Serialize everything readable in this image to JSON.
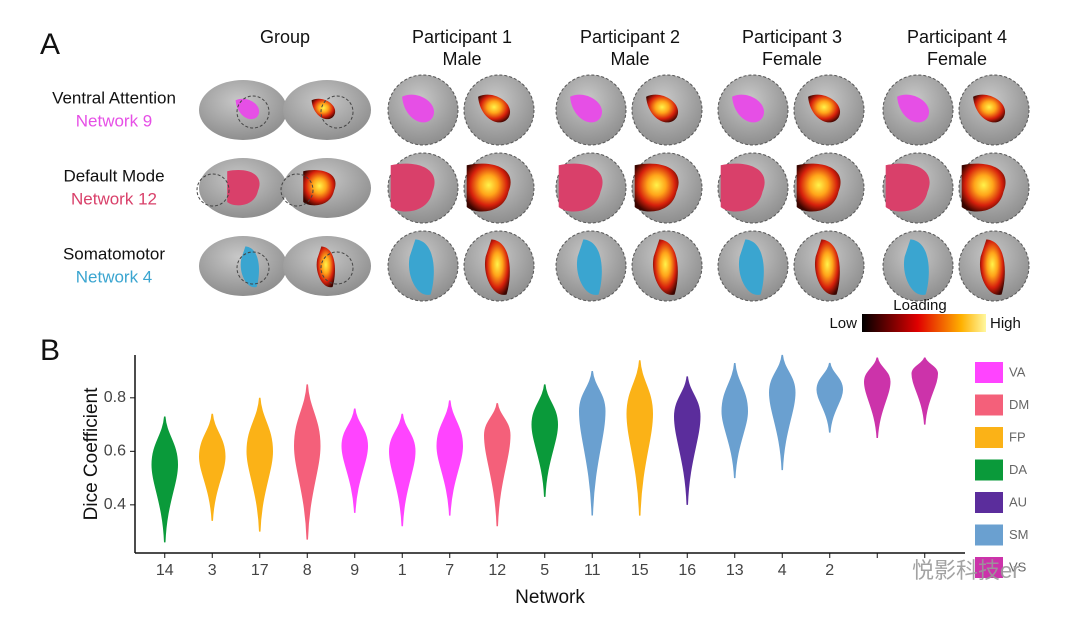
{
  "panel_a": {
    "label": "A",
    "columns": [
      {
        "title": "Group"
      },
      {
        "title": "Participant 1",
        "subtitle": "Male"
      },
      {
        "title": "Participant 2",
        "subtitle": "Male"
      },
      {
        "title": "Participant 3",
        "subtitle": "Female"
      },
      {
        "title": "Participant 4",
        "subtitle": "Female"
      }
    ],
    "rows": [
      {
        "name": "Ventral Attention",
        "network": "Network 9",
        "color": "#e64fe6"
      },
      {
        "name": "Default Mode",
        "network": "Network 12",
        "color": "#d9406a"
      },
      {
        "name": "Somatomotor",
        "network": "Network 4",
        "color": "#3aa5d0"
      }
    ],
    "colorbar": {
      "title": "Loading",
      "low": "Low",
      "high": "High"
    }
  },
  "chart_data": {
    "type": "violin",
    "panel_label": "B",
    "y_label": "Dice Coefficient",
    "x_label": "Network",
    "categories": [
      "14",
      "3",
      "17",
      "8",
      "9",
      "1",
      "7",
      "12",
      "5",
      "11",
      "15",
      "16",
      "13",
      "4",
      "2",
      null,
      null
    ],
    "values": [
      0.55,
      0.58,
      0.6,
      0.62,
      0.62,
      0.6,
      0.62,
      0.66,
      0.7,
      0.75,
      0.74,
      0.73,
      0.75,
      0.82,
      0.83,
      0.86,
      0.89
    ],
    "min": [
      0.26,
      0.34,
      0.3,
      0.27,
      0.37,
      0.32,
      0.36,
      0.32,
      0.43,
      0.36,
      0.36,
      0.4,
      0.5,
      0.53,
      0.67,
      0.65,
      0.7
    ],
    "max": [
      0.73,
      0.74,
      0.8,
      0.85,
      0.76,
      0.74,
      0.79,
      0.78,
      0.85,
      0.9,
      0.94,
      0.88,
      0.93,
      0.96,
      0.93,
      0.95,
      0.95
    ],
    "colors": [
      "#0a9a3a",
      "#fbb217",
      "#fbb217",
      "#f4607a",
      "#ff44ff",
      "#ff44ff",
      "#ff44ff",
      "#f4607a",
      "#0a9a3a",
      "#6aa0d0",
      "#fbb217",
      "#5b2d9c",
      "#6aa0d0",
      "#6aa0d0",
      "#6aa0d0",
      "#cc33aa",
      "#cc33aa"
    ],
    "legend": [
      {
        "name": "VA",
        "color": "#ff44ff"
      },
      {
        "name": "DM",
        "color": "#f4607a"
      },
      {
        "name": "FP",
        "color": "#fbb217"
      },
      {
        "name": "DA",
        "color": "#0a9a3a"
      },
      {
        "name": "AU",
        "color": "#5b2d9c"
      },
      {
        "name": "SM",
        "color": "#6aa0d0"
      },
      {
        "name": "VS",
        "color": "#cc33aa"
      }
    ],
    "ylim": [
      0.22,
      0.96
    ],
    "yticks": [
      0.4,
      0.6,
      0.8
    ],
    "watermark": "悦影科技er"
  }
}
